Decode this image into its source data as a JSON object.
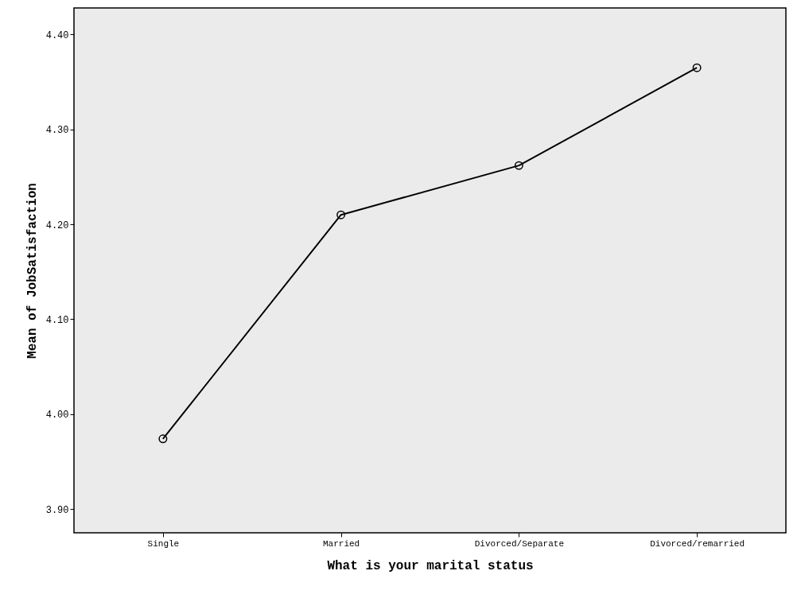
{
  "chart_data": {
    "type": "line",
    "xlabel": "What is your marital status",
    "ylabel": "Mean of JobSatisfaction",
    "categories": [
      "Single",
      "Married",
      "Divorced/Separate",
      "Divorced/remarried"
    ],
    "series": [
      {
        "color": "#000000",
        "values": [
          3.974,
          4.21,
          4.262,
          4.365
        ]
      }
    ],
    "ylim": [
      3.875,
      4.428
    ],
    "yticks": [
      {
        "value": 3.9,
        "label": "3.90"
      },
      {
        "value": 4.0,
        "label": "4.00"
      },
      {
        "value": 4.1,
        "label": "4.10"
      },
      {
        "value": 4.2,
        "label": "4.20"
      },
      {
        "value": 4.3,
        "label": "4.30"
      },
      {
        "value": 4.4,
        "label": "4.40"
      }
    ],
    "marker": "circle",
    "line_style": "solid",
    "grid": false
  }
}
